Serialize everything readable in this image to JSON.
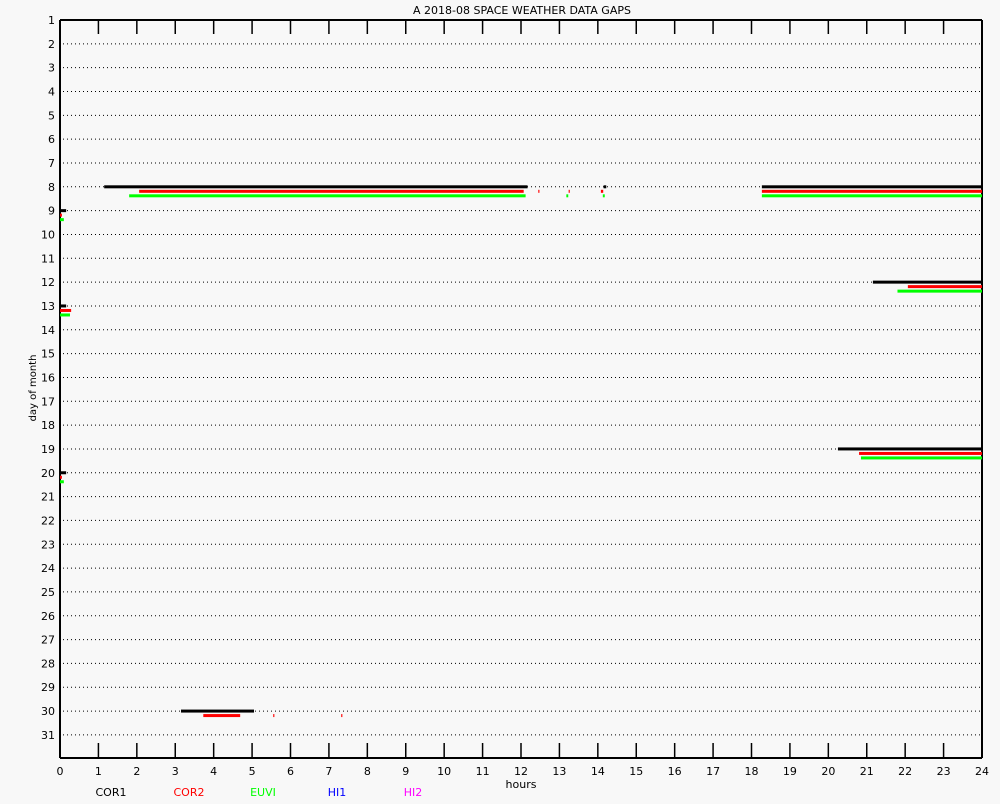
{
  "chart_data": {
    "type": "bar",
    "subtype": "horizontal-gap-segments",
    "title": "A  2018-08 SPACE WEATHER DATA GAPS",
    "xlabel": "hours",
    "ylabel": "day of month",
    "xlim": [
      0,
      24
    ],
    "ylim": [
      1,
      31
    ],
    "y_inverted": true,
    "grid": "dotted horizontal lines at each day",
    "x_ticks": [
      0,
      1,
      2,
      3,
      4,
      5,
      6,
      7,
      8,
      9,
      10,
      11,
      12,
      13,
      14,
      15,
      16,
      17,
      18,
      19,
      20,
      21,
      22,
      23,
      24
    ],
    "y_ticks": [
      1,
      2,
      3,
      4,
      5,
      6,
      7,
      8,
      9,
      10,
      11,
      12,
      13,
      14,
      15,
      16,
      17,
      18,
      19,
      20,
      21,
      22,
      23,
      24,
      25,
      26,
      27,
      28,
      29,
      30,
      31
    ],
    "legend_placement": "bottom",
    "series": [
      {
        "name": "COR1",
        "color": "#000000",
        "segments": [
          {
            "day": 8,
            "start": 1.15,
            "end": 12.17
          },
          {
            "day": 8,
            "start": 14.15,
            "end": 14.22
          },
          {
            "day": 8,
            "start": 18.27,
            "end": 24
          },
          {
            "day": 9,
            "start": 0,
            "end": 0.16
          },
          {
            "day": 12,
            "start": 21.16,
            "end": 24
          },
          {
            "day": 13,
            "start": 0,
            "end": 0.16
          },
          {
            "day": 19,
            "start": 20.25,
            "end": 24
          },
          {
            "day": 20,
            "start": 0,
            "end": 0.16
          },
          {
            "day": 30,
            "start": 3.15,
            "end": 5.05
          }
        ]
      },
      {
        "name": "COR2",
        "color": "#ff0000",
        "segments": [
          {
            "day": 8,
            "start": 2.06,
            "end": 12.07
          },
          {
            "day": 8,
            "start": 12.45,
            "end": 12.48
          },
          {
            "day": 8,
            "start": 13.24,
            "end": 13.27
          },
          {
            "day": 8,
            "start": 14.08,
            "end": 14.14
          },
          {
            "day": 8,
            "start": 18.27,
            "end": 24
          },
          {
            "day": 9,
            "start": 0,
            "end": 0.05
          },
          {
            "day": 12,
            "start": 22.07,
            "end": 24
          },
          {
            "day": 13,
            "start": 0,
            "end": 0.29
          },
          {
            "day": 19,
            "start": 20.8,
            "end": 24
          },
          {
            "day": 20,
            "start": 0,
            "end": 0.05
          },
          {
            "day": 30,
            "start": 3.73,
            "end": 4.69
          },
          {
            "day": 30,
            "start": 5.55,
            "end": 5.58
          },
          {
            "day": 30,
            "start": 7.32,
            "end": 7.35
          }
        ]
      },
      {
        "name": "EUVI",
        "color": "#00ff00",
        "segments": [
          {
            "day": 8,
            "start": 1.8,
            "end": 12.12
          },
          {
            "day": 8,
            "start": 13.18,
            "end": 13.23
          },
          {
            "day": 8,
            "start": 14.13,
            "end": 14.18
          },
          {
            "day": 8,
            "start": 18.27,
            "end": 24
          },
          {
            "day": 9,
            "start": 0,
            "end": 0.1
          },
          {
            "day": 12,
            "start": 21.8,
            "end": 24
          },
          {
            "day": 13,
            "start": 0,
            "end": 0.26
          },
          {
            "day": 19,
            "start": 20.85,
            "end": 24
          },
          {
            "day": 20,
            "start": 0,
            "end": 0.1
          }
        ]
      },
      {
        "name": "HI1",
        "color": "#0000ff",
        "segments": []
      },
      {
        "name": "HI2",
        "color": "#ff00ff",
        "segments": []
      }
    ]
  }
}
